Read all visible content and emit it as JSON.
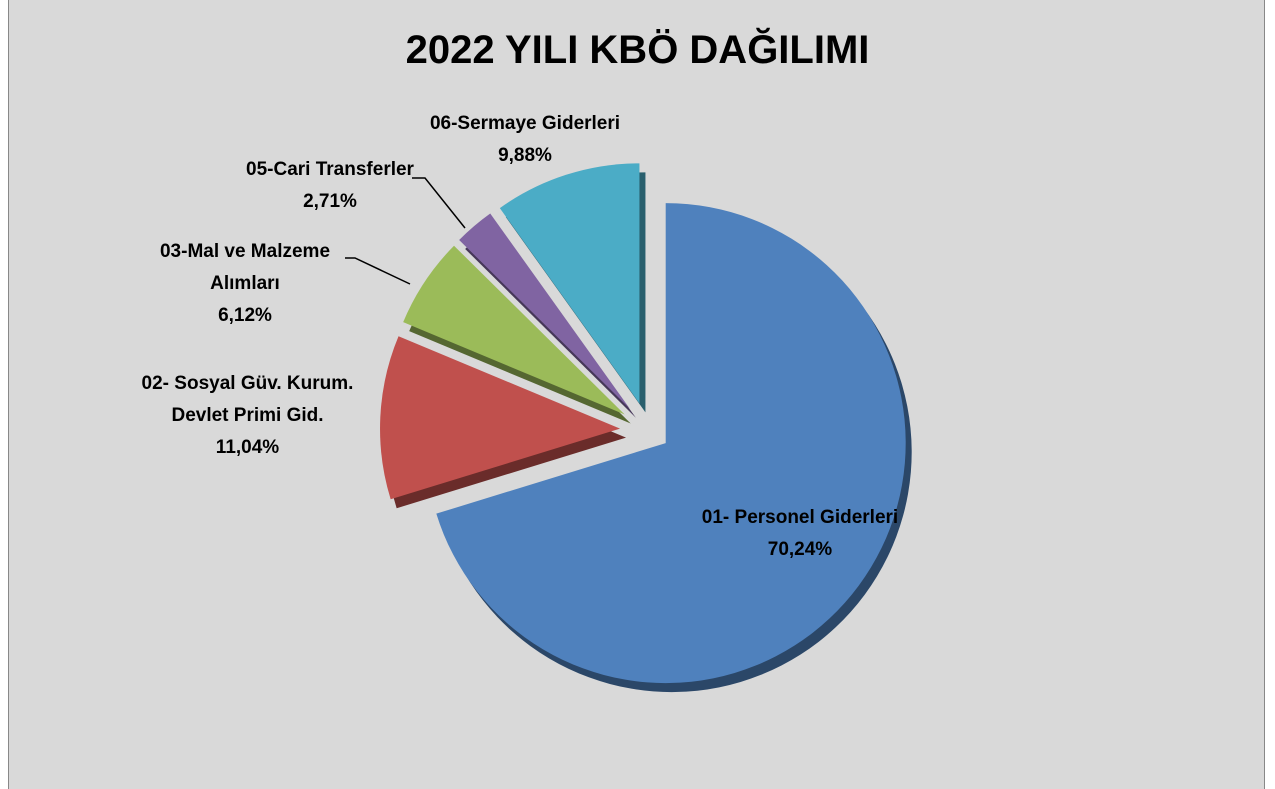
{
  "chart_data": {
    "type": "pie",
    "title": "2022 YILI KBÖ DAĞILIMI",
    "categories": [
      "01- Personel Giderleri",
      "02- Sosyal Güv. Kurum. Devlet Primi Gid.",
      "03-Mal ve Malzeme Alımları",
      "05-Cari Transferler",
      "06-Sermaye Giderleri"
    ],
    "values": [
      70.24,
      11.04,
      6.12,
      2.71,
      9.88
    ],
    "value_labels": [
      "70,24%",
      "11,04%",
      "6,12%",
      "2,71%",
      "9,88%"
    ],
    "colors": [
      "#4f81bd",
      "#c0504d",
      "#9bbb59",
      "#8064a2",
      "#4bacc6"
    ]
  }
}
